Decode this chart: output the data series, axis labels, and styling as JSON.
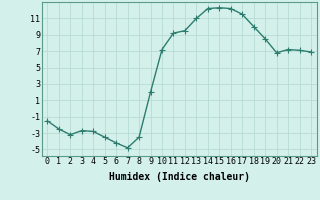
{
  "x": [
    0,
    1,
    2,
    3,
    4,
    5,
    6,
    7,
    8,
    9,
    10,
    11,
    12,
    13,
    14,
    15,
    16,
    17,
    18,
    19,
    20,
    21,
    22,
    23
  ],
  "y": [
    -1.5,
    -2.5,
    -3.2,
    -2.7,
    -2.8,
    -3.5,
    -4.2,
    -4.8,
    -3.5,
    2.0,
    7.2,
    9.2,
    9.5,
    11.0,
    12.2,
    12.3,
    12.2,
    11.5,
    10.0,
    8.5,
    6.8,
    7.2,
    7.1,
    6.9
  ],
  "line_color": "#2d7d6f",
  "marker": "+",
  "marker_size": 4,
  "bg_color": "#d4f0eb",
  "grid_color": "#b8dbd6",
  "xlabel": "Humidex (Indice chaleur)",
  "xlim": [
    -0.5,
    23.5
  ],
  "ylim": [
    -5.8,
    13.0
  ],
  "yticks": [
    -5,
    -3,
    -1,
    1,
    3,
    5,
    7,
    9,
    11
  ],
  "xticks": [
    0,
    1,
    2,
    3,
    4,
    5,
    6,
    7,
    8,
    9,
    10,
    11,
    12,
    13,
    14,
    15,
    16,
    17,
    18,
    19,
    20,
    21,
    22,
    23
  ],
  "xtick_labels": [
    "0",
    "1",
    "2",
    "3",
    "4",
    "5",
    "6",
    "7",
    "8",
    "9",
    "10",
    "11",
    "12",
    "13",
    "14",
    "15",
    "16",
    "17",
    "18",
    "19",
    "20",
    "21",
    "22",
    "23"
  ],
  "tick_fontsize": 6,
  "xlabel_fontsize": 7,
  "line_width": 1.0,
  "marker_color": "#2d7d6f"
}
